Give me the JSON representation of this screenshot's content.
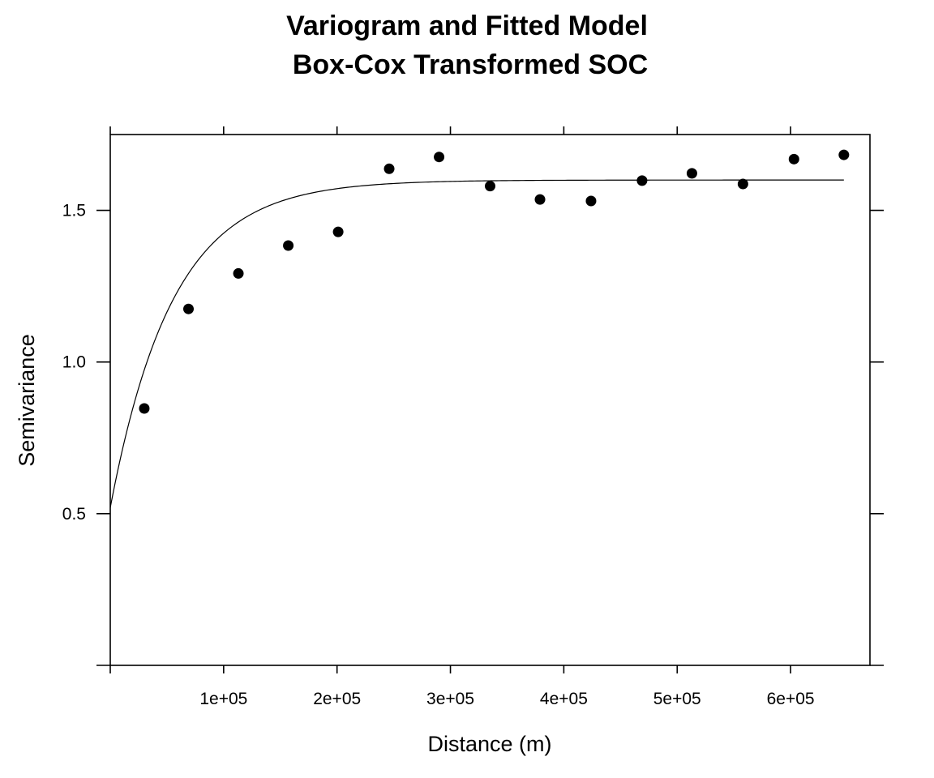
{
  "chart_data": {
    "type": "scatter",
    "title": "Variogram and Fitted Model",
    "subtitle": "Box-Cox Transformed SOC",
    "xlabel": "Distance (m)",
    "ylabel": "Semivariance",
    "xlim": [
      0,
      670000
    ],
    "ylim": [
      0,
      1.75
    ],
    "x_ticks": [
      {
        "value": 100000,
        "label": "1e+05"
      },
      {
        "value": 200000,
        "label": "2e+05"
      },
      {
        "value": 300000,
        "label": "3e+05"
      },
      {
        "value": 400000,
        "label": "4e+05"
      },
      {
        "value": 500000,
        "label": "5e+05"
      },
      {
        "value": 600000,
        "label": "6e+05"
      }
    ],
    "y_ticks": [
      {
        "value": 0.5,
        "label": "0.5"
      },
      {
        "value": 1.0,
        "label": "1.0"
      },
      {
        "value": 1.5,
        "label": "1.5"
      }
    ],
    "points": {
      "x": [
        30000,
        69000,
        113000,
        157000,
        201000,
        246000,
        290000,
        335000,
        379000,
        424000,
        469000,
        513000,
        558000,
        603000,
        647000
      ],
      "y": [
        0.847,
        1.175,
        1.292,
        1.384,
        1.429,
        1.637,
        1.676,
        1.58,
        1.536,
        1.531,
        1.598,
        1.622,
        1.587,
        1.669,
        1.683
      ]
    },
    "model": {
      "type": "exponential",
      "nugget": 0.52,
      "partial_sill": 1.08,
      "range": 55000,
      "x_max": 647000
    },
    "colors": {
      "points": "#000000",
      "line": "#000000"
    }
  }
}
